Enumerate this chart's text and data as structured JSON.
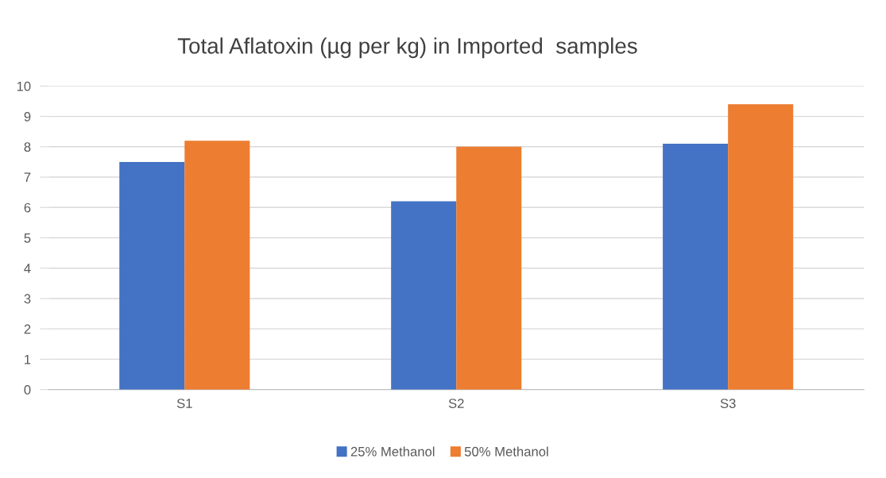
{
  "chart_data": {
    "type": "bar",
    "title": "Total Aflatoxin (µg per kg) in Imported  samples",
    "categories": [
      "S1",
      "S2",
      "S3"
    ],
    "series": [
      {
        "name": "25% Methanol",
        "color": "#4472c4",
        "values": [
          7.5,
          6.2,
          8.1
        ]
      },
      {
        "name": "50% Methanol",
        "color": "#ed7d31",
        "values": [
          8.2,
          8.0,
          9.4
        ]
      }
    ],
    "ylim": [
      0,
      10
    ],
    "yticks": [
      0,
      1,
      2,
      3,
      4,
      5,
      6,
      7,
      8,
      9,
      10
    ],
    "grid": "y",
    "legend": "bottom"
  }
}
